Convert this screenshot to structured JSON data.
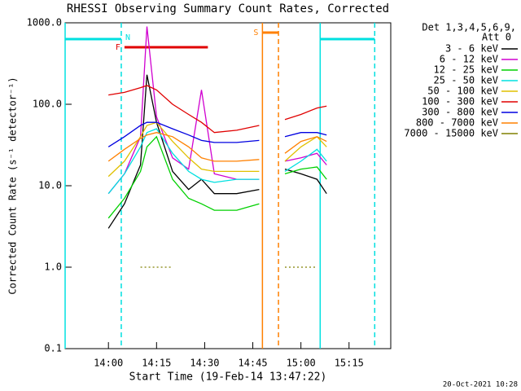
{
  "chart_data": {
    "type": "line",
    "title": "RHESSI Observing Summary Count Rates, Corrected",
    "x_label": "Start Time (19-Feb-14 13:47:22)",
    "y_label": "Corrected Count Rate (s⁻¹ detector⁻¹)",
    "legend_title": [
      "Det 1,3,4,5,6,9,",
      "Att 0"
    ],
    "footer": "20-Oct-2021 10:28",
    "log_y": true,
    "xlim": [
      "13:46:30",
      "15:28:00"
    ],
    "xticks": [
      "14:00",
      "14:15",
      "14:30",
      "14:45",
      "15:00",
      "15:15"
    ],
    "ylim": [
      0.1,
      1000
    ],
    "yticks": [
      {
        "value": 1000,
        "label": "1000.0"
      },
      {
        "value": 100,
        "label": "100.0"
      },
      {
        "value": 10,
        "label": "10.0"
      },
      {
        "value": 1,
        "label": "1.0"
      },
      0.1
    ],
    "x": [
      "14:00",
      "14:05",
      "14:10",
      "14:12",
      "14:15",
      "14:20",
      "14:25",
      "14:29",
      "14:33",
      "14:40",
      "14:47",
      "14:51",
      "14:55",
      "15:00",
      "15:05",
      "15:08"
    ],
    "series": [
      {
        "name": "3 - 6 keV",
        "color": "#000000",
        "values": [
          3,
          6,
          18,
          230,
          60,
          15,
          9,
          12,
          8,
          8,
          9,
          null,
          16,
          14,
          12,
          8
        ]
      },
      {
        "name": "6 - 12 keV",
        "color": "#d000d0",
        "values": [
          8,
          14,
          40,
          900,
          70,
          22,
          16,
          150,
          14,
          12,
          12,
          null,
          20,
          22,
          25,
          18
        ]
      },
      {
        "name": "12 - 25 keV",
        "color": "#00d000",
        "values": [
          4,
          7,
          15,
          30,
          40,
          12,
          7,
          6,
          5,
          5,
          6,
          null,
          14,
          16,
          17,
          12
        ]
      },
      {
        "name": "25 - 50 keV",
        "color": "#00e0e0",
        "values": [
          8,
          14,
          30,
          45,
          50,
          25,
          15,
          12,
          11,
          12,
          12,
          null,
          15,
          20,
          28,
          20
        ]
      },
      {
        "name": "50 - 100 keV",
        "color": "#e0c000",
        "values": [
          13,
          20,
          40,
          55,
          60,
          35,
          22,
          16,
          15,
          15,
          15,
          null,
          20,
          30,
          40,
          30
        ]
      },
      {
        "name": "100 - 300 keV",
        "color": "#e00000",
        "values": [
          130,
          140,
          160,
          170,
          150,
          100,
          75,
          60,
          45,
          48,
          55,
          null,
          65,
          75,
          90,
          95
        ]
      },
      {
        "name": "300 - 800 keV",
        "color": "#0000e0",
        "values": [
          30,
          40,
          55,
          60,
          60,
          50,
          42,
          36,
          34,
          34,
          36,
          null,
          40,
          45,
          45,
          42
        ]
      },
      {
        "name": "800 - 7000 keV",
        "color": "#ff8000",
        "values": [
          20,
          28,
          38,
          42,
          45,
          40,
          30,
          22,
          20,
          20,
          21,
          null,
          25,
          35,
          40,
          35
        ]
      },
      {
        "name": "7000 - 15000 keV",
        "color": "#808000",
        "values": [
          null,
          null,
          1,
          1,
          1,
          1,
          null,
          null,
          null,
          null,
          null,
          null,
          1,
          1,
          1,
          null
        ]
      }
    ],
    "bars": [
      {
        "label": "N",
        "color": "#00e0e0",
        "start": "13:46:30",
        "end": "14:04"
      },
      {
        "label": "",
        "color": "#00e0e0",
        "start": "15:06",
        "end": "15:23"
      },
      {
        "label": "F",
        "color": "#e00000",
        "start": "14:05",
        "end": "14:31"
      },
      {
        "label": "S",
        "color": "#ff8000",
        "start": "14:48",
        "end": "14:53"
      }
    ],
    "markers": [
      {
        "time": "13:46:30",
        "color": "#00e0e0",
        "dashed": false
      },
      {
        "time": "14:04",
        "color": "#00e0e0",
        "dashed": true
      },
      {
        "time": "14:48",
        "color": "#ff8000",
        "dashed": false
      },
      {
        "time": "14:53",
        "color": "#ff8000",
        "dashed": true
      },
      {
        "time": "15:06",
        "color": "#00e0e0",
        "dashed": false
      },
      {
        "time": "15:23",
        "color": "#00e0e0",
        "dashed": true
      }
    ]
  }
}
